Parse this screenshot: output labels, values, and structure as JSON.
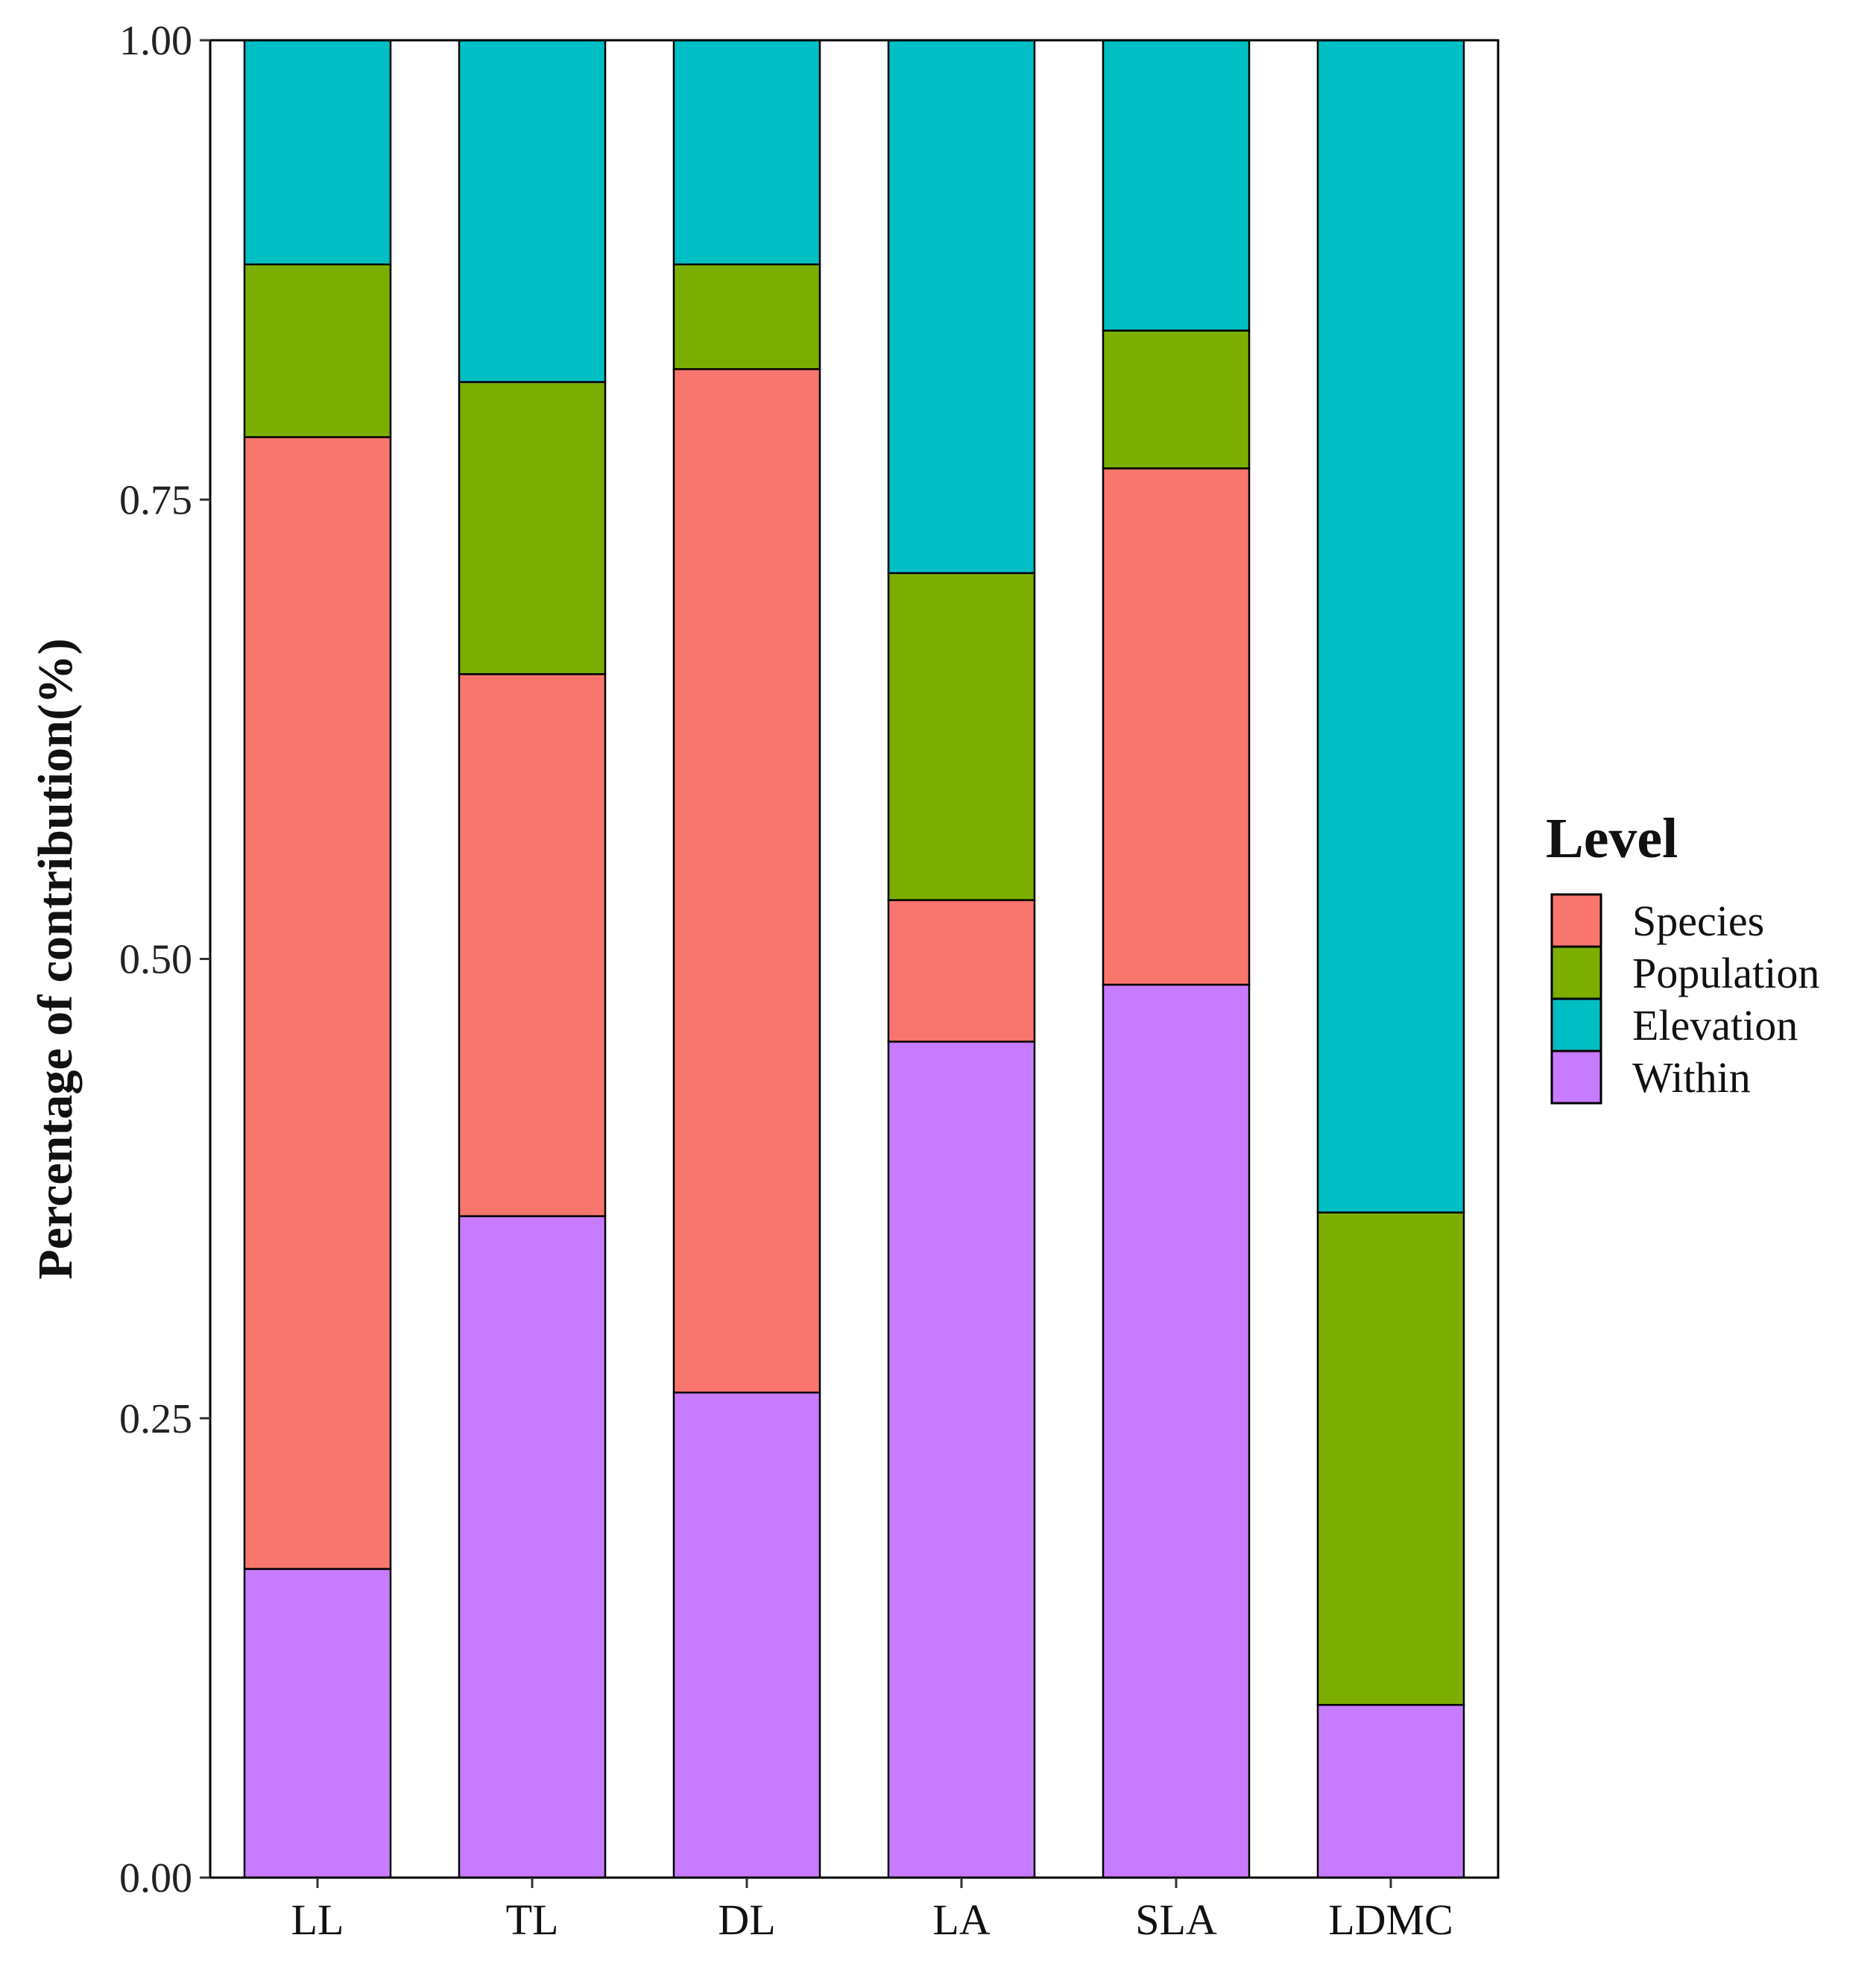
{
  "chart_data": {
    "type": "bar",
    "stacked": true,
    "title": "",
    "xlabel": "",
    "ylabel": "Percentage of contribution(%)",
    "ylim": [
      0,
      1
    ],
    "yticks": [
      0.0,
      0.25,
      0.5,
      0.75,
      1.0
    ],
    "ytick_labels": [
      "0.00",
      "0.25",
      "0.50",
      "0.75",
      "1.00"
    ],
    "grid": false,
    "categories": [
      "LL",
      "TL",
      "DL",
      "LA",
      "SLA",
      "LDMC"
    ],
    "stack_order_bottom_to_top": [
      "Within",
      "Species",
      "Population",
      "Elevation"
    ],
    "series": [
      {
        "name": "Within",
        "color": "#C77CFF",
        "values": [
          0.168,
          0.36,
          0.264,
          0.455,
          0.486,
          0.094
        ]
      },
      {
        "name": "Species",
        "color": "#F8766D",
        "values": [
          0.616,
          0.295,
          0.557,
          0.077,
          0.281,
          0.0
        ]
      },
      {
        "name": "Population",
        "color": "#7CAE00",
        "values": [
          0.094,
          0.159,
          0.057,
          0.178,
          0.075,
          0.268
        ]
      },
      {
        "name": "Elevation",
        "color": "#00BFC4",
        "values": [
          0.122,
          0.186,
          0.122,
          0.29,
          0.158,
          0.638
        ]
      }
    ],
    "legend": {
      "title": "Level",
      "position": "right",
      "entries": [
        "Species",
        "Population",
        "Elevation",
        "Within"
      ]
    }
  }
}
